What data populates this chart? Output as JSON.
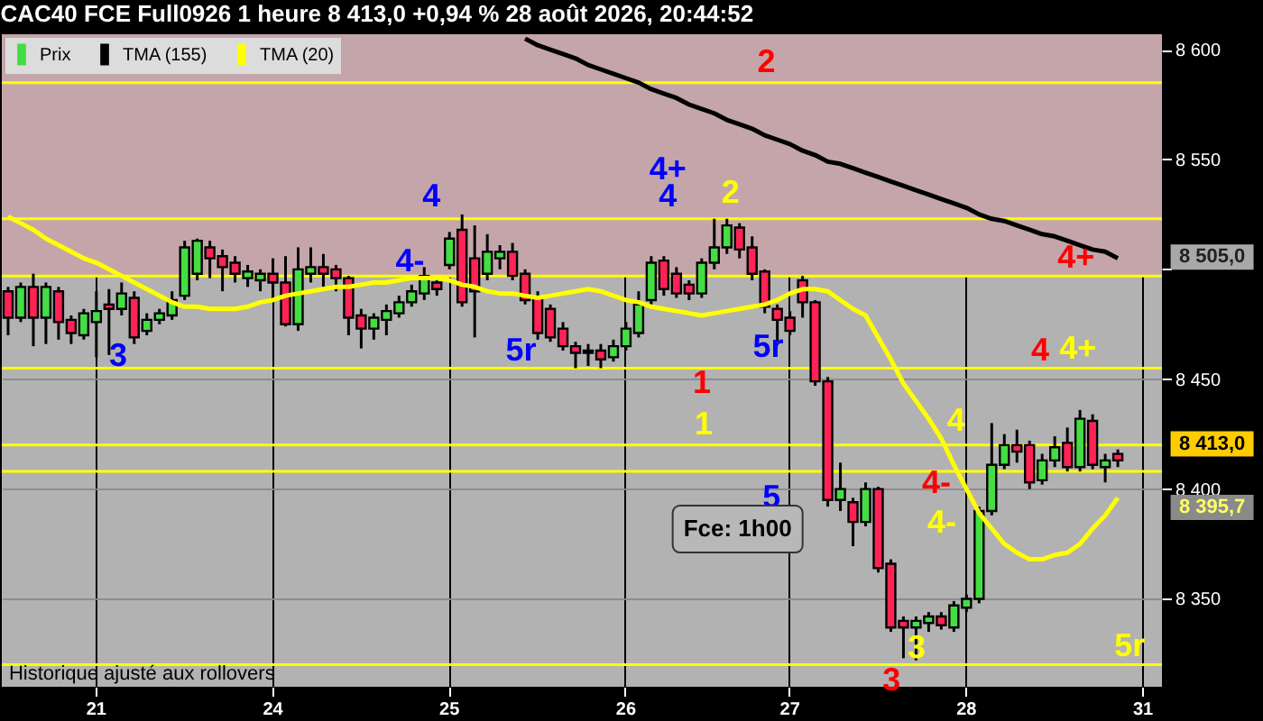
{
  "chart_data": {
    "type": "candlestick",
    "title": "CAC40 FCE Full0926 1 heure 8 413,0 +0,94 % 28 août 2026, 20:44:52",
    "categories": [
      null,
      null,
      null,
      null,
      null,
      null,
      null,
      "21",
      null,
      null,
      null,
      null,
      null,
      null,
      null,
      null,
      null,
      null,
      null,
      null,
      null,
      "24",
      null,
      null,
      null,
      null,
      null,
      null,
      null,
      null,
      null,
      null,
      null,
      null,
      null,
      "25",
      null,
      null,
      null,
      null,
      null,
      null,
      null,
      null,
      null,
      null,
      null,
      null,
      null,
      "26",
      null,
      null,
      null,
      null,
      null,
      null,
      null,
      null,
      null,
      null,
      null,
      null,
      "27",
      null,
      null,
      null,
      null,
      null,
      null,
      null,
      null,
      null,
      null,
      null,
      null,
      null,
      "28",
      null,
      null,
      null,
      null,
      null,
      null,
      null,
      null,
      null,
      null,
      null,
      null,
      null,
      "31",
      null
    ],
    "ylim": [
      8310,
      8607
    ],
    "yticks": [
      {
        "value": 8350,
        "label": "8 350"
      },
      {
        "value": 8400,
        "label": "8 400"
      },
      {
        "value": 8450,
        "label": "8 450"
      },
      {
        "value": 8500,
        "label": null
      },
      {
        "value": 8550,
        "label": "8 550"
      },
      {
        "value": 8600,
        "label": "8 600"
      }
    ],
    "grid": true,
    "legend": "top left",
    "series": [
      {
        "name": "Prix",
        "color": "#44dd44",
        "ohlc": [
          [
            8490,
            8492,
            8470,
            8478
          ],
          [
            8478,
            8494,
            8476,
            8492
          ],
          [
            8492,
            8498,
            8465,
            8478
          ],
          [
            8478,
            8494,
            8466,
            8492
          ],
          [
            8490,
            8492,
            8468,
            8476
          ],
          [
            8477,
            8479,
            8466,
            8471
          ],
          [
            8470,
            8482,
            8468,
            8480
          ],
          [
            8476,
            8490,
            8460,
            8481
          ],
          [
            8484,
            8491,
            8461,
            8482
          ],
          [
            8482,
            8494,
            8479,
            8489
          ],
          [
            8487,
            8490,
            8466,
            8469
          ],
          [
            8472,
            8480,
            8470,
            8477
          ],
          [
            8477,
            8482,
            8475,
            8480
          ],
          [
            8479,
            8490,
            8477,
            8486
          ],
          [
            8488,
            8513,
            8486,
            8510
          ],
          [
            8498,
            8514,
            8495,
            8513
          ],
          [
            8510,
            8513,
            8496,
            8505
          ],
          [
            8506,
            8509,
            8490,
            8501
          ],
          [
            8503,
            8506,
            8494,
            8498
          ],
          [
            8496,
            8502,
            8492,
            8499
          ],
          [
            8495,
            8500,
            8490,
            8498
          ],
          [
            8498,
            8505,
            8485,
            8494
          ],
          [
            8494,
            8506,
            8474,
            8475
          ],
          [
            8475,
            8510,
            8472,
            8500
          ],
          [
            8498,
            8510,
            8494,
            8501
          ],
          [
            8501,
            8507,
            8492,
            8498
          ],
          [
            8500,
            8502,
            8490,
            8496
          ],
          [
            8496,
            8497,
            8470,
            8478
          ],
          [
            8479,
            8482,
            8464,
            8473
          ],
          [
            8473,
            8480,
            8468,
            8478
          ],
          [
            8477,
            8484,
            8470,
            8481
          ],
          [
            8480,
            8488,
            8478,
            8485
          ],
          [
            8485,
            8493,
            8483,
            8490
          ],
          [
            8489,
            8501,
            8486,
            8497
          ],
          [
            8494,
            8496,
            8488,
            8491
          ],
          [
            8502,
            8517,
            8500,
            8514
          ],
          [
            8518,
            8525,
            8483,
            8485
          ],
          [
            8505,
            8520,
            8469,
            8490
          ],
          [
            8498,
            8516,
            8495,
            8508
          ],
          [
            8505,
            8511,
            8500,
            8508
          ],
          [
            8508,
            8512,
            8495,
            8497
          ],
          [
            8498,
            8500,
            8484,
            8486
          ],
          [
            8487,
            8490,
            8468,
            8471
          ],
          [
            8482,
            8484,
            8467,
            8469
          ],
          [
            8473,
            8476,
            8463,
            8465
          ],
          [
            8465,
            8467,
            8455,
            8462
          ],
          [
            8462,
            8466,
            8456,
            8463
          ],
          [
            8463,
            8466,
            8455,
            8459
          ],
          [
            8460,
            8468,
            8458,
            8465
          ],
          [
            8465,
            8476,
            8463,
            8473
          ],
          [
            8471,
            8490,
            8469,
            8484
          ],
          [
            8486,
            8506,
            8484,
            8503
          ],
          [
            8504,
            8506,
            8488,
            8491
          ],
          [
            8498,
            8501,
            8487,
            8489
          ],
          [
            8493,
            8495,
            8486,
            8489
          ],
          [
            8489,
            8505,
            8487,
            8503
          ],
          [
            8503,
            8523,
            8500,
            8510
          ],
          [
            8510,
            8523,
            8507,
            8520
          ],
          [
            8519,
            8521,
            8505,
            8509
          ],
          [
            8510,
            8515,
            8495,
            8498
          ],
          [
            8499,
            8500,
            8480,
            8483
          ],
          [
            8482,
            8484,
            8467,
            8477
          ],
          [
            8478,
            8481,
            8470,
            8472
          ],
          [
            8495,
            8497,
            8478,
            8485
          ],
          [
            8485,
            8486,
            8447,
            8449
          ],
          [
            8449,
            8451,
            8392,
            8395
          ],
          [
            8395,
            8412,
            8390,
            8400
          ],
          [
            8394,
            8396,
            8374,
            8385
          ],
          [
            8385,
            8403,
            8383,
            8400
          ],
          [
            8400,
            8401,
            8362,
            8364
          ],
          [
            8366,
            8368,
            8335,
            8337
          ],
          [
            8340,
            8342,
            8323,
            8337
          ],
          [
            8337,
            8342,
            8322,
            8340
          ],
          [
            8339,
            8344,
            8335,
            8342
          ],
          [
            8342,
            8344,
            8336,
            8338
          ],
          [
            8337,
            8349,
            8335,
            8347
          ],
          [
            8346,
            8352,
            8344,
            8350
          ],
          [
            8350,
            8392,
            8348,
            8390
          ],
          [
            8390,
            8430,
            8388,
            8411
          ],
          [
            8411,
            8425,
            8409,
            8420
          ],
          [
            8420,
            8427,
            8412,
            8417
          ],
          [
            8420,
            8422,
            8400,
            8403
          ],
          [
            8404,
            8416,
            8402,
            8413
          ],
          [
            8413,
            8424,
            8410,
            8419
          ],
          [
            8421,
            8428,
            8408,
            8410
          ],
          [
            8410,
            8436,
            8408,
            8432
          ],
          [
            8431,
            8434,
            8409,
            8411
          ],
          [
            8410,
            8416,
            8403,
            8413
          ],
          [
            8416,
            8418,
            8410,
            8413
          ],
          null,
          null,
          null
        ],
        "colors": [
          "#ff2255",
          "#44dd44",
          "#ff2255",
          "#44dd44",
          "#ff2255",
          "#ff2255",
          "#44dd44",
          "#44dd44",
          "#ff2255",
          "#44dd44",
          "#ff2255",
          "#44dd44",
          "#44dd44",
          "#44dd44",
          "#44dd44",
          "#44dd44",
          "#ff2255",
          "#ff2255",
          "#ff2255",
          "#44dd44",
          "#44dd44",
          "#ff2255",
          "#ff2255",
          "#44dd44",
          "#44dd44",
          "#ff2255",
          "#ff2255",
          "#ff2255",
          "#ff2255",
          "#44dd44",
          "#44dd44",
          "#44dd44",
          "#44dd44",
          "#44dd44",
          "#ff2255",
          "#44dd44",
          "#ff2255",
          "#ff2255",
          "#44dd44",
          "#44dd44",
          "#ff2255",
          "#ff2255",
          "#ff2255",
          "#ff2255",
          "#ff2255",
          "#ff2255",
          "#44dd44",
          "#ff2255",
          "#44dd44",
          "#44dd44",
          "#44dd44",
          "#44dd44",
          "#ff2255",
          "#ff2255",
          "#ff2255",
          "#44dd44",
          "#44dd44",
          "#44dd44",
          "#ff2255",
          "#ff2255",
          "#ff2255",
          "#ff2255",
          "#ff2255",
          "#ff2255",
          "#ff2255",
          "#ff2255",
          "#44dd44",
          "#ff2255",
          "#44dd44",
          "#ff2255",
          "#ff2255",
          "#ff2255",
          "#44dd44",
          "#44dd44",
          "#ff2255",
          "#44dd44",
          "#44dd44",
          "#44dd44",
          "#44dd44",
          "#44dd44",
          "#ff2255",
          "#ff2255",
          "#44dd44",
          "#44dd44",
          "#ff2255",
          "#44dd44",
          "#ff2255",
          "#44dd44",
          "#ff2255",
          null,
          null,
          null
        ]
      },
      {
        "name": "TMA (155)",
        "type": "line",
        "color": "#000000",
        "values": [
          null,
          null,
          null,
          null,
          null,
          null,
          null,
          null,
          null,
          null,
          null,
          null,
          null,
          null,
          null,
          null,
          null,
          null,
          null,
          null,
          null,
          null,
          null,
          null,
          null,
          null,
          null,
          null,
          null,
          null,
          null,
          null,
          null,
          null,
          null,
          null,
          null,
          null,
          null,
          null,
          null,
          8605,
          8602,
          8600,
          8598,
          8596,
          8593,
          8591,
          8589,
          8587,
          8585,
          8582,
          8580,
          8578,
          8575,
          8573,
          8571,
          8568,
          8566,
          8564,
          8561,
          8559,
          8557,
          8554,
          8552,
          8549,
          8548,
          8546,
          8544,
          8542,
          8540,
          8538,
          8536,
          8534,
          8532,
          8530,
          8528,
          8525,
          8523,
          8522,
          8520,
          8518,
          8516,
          8515,
          8513,
          8511,
          8509,
          8508,
          8505,
          null,
          null,
          null
        ]
      },
      {
        "name": "TMA (20)",
        "type": "line",
        "color": "#ffff00",
        "values": [
          8524,
          8521,
          8518,
          8514,
          8511,
          8508,
          8505,
          8503,
          8500,
          8497,
          8494,
          8491,
          8488,
          8485,
          8483,
          8483,
          8482,
          8482,
          8482,
          8483,
          8485,
          8486,
          8488,
          8489,
          8490,
          8491,
          8492,
          8492,
          8493,
          8494,
          8494,
          8495,
          8496,
          8496,
          8496,
          8495,
          8493,
          8492,
          8490,
          8489,
          8489,
          8488,
          8487,
          8488,
          8489,
          8490,
          8491,
          8490,
          8488,
          8486,
          8485,
          8483,
          8482,
          8481,
          8480,
          8479,
          8480,
          8481,
          8482,
          8483,
          8484,
          8486,
          8489,
          8491,
          8491,
          8490,
          8486,
          8482,
          8479,
          8469,
          8459,
          8448,
          8440,
          8432,
          8423,
          8411,
          8400,
          8389,
          8382,
          8375,
          8371,
          8368,
          8368,
          8370,
          8371,
          8375,
          8382,
          8388,
          8396,
          null,
          null,
          null
        ]
      }
    ],
    "ref_lines": [
      {
        "axis": "y",
        "value": 8585,
        "color": "#ffff00"
      },
      {
        "axis": "y",
        "value": 8523,
        "color": "#ffff00"
      },
      {
        "axis": "y",
        "value": 8497,
        "color": "#ffff00"
      },
      {
        "axis": "y",
        "value": 8455,
        "color": "#ffff00"
      },
      {
        "axis": "y",
        "value": 8420,
        "color": "#ffff00"
      },
      {
        "axis": "y",
        "value": 8408,
        "color": "#ffff00"
      },
      {
        "axis": "y",
        "value": 8320,
        "color": "#ffff00"
      }
    ],
    "bands": [
      {
        "axis": "y",
        "from": 8497,
        "to": 8607,
        "color": "#c4a6aa"
      }
    ],
    "annotations": [
      "2",
      "4+",
      "2",
      "4",
      "4",
      "4-",
      "3",
      "5r",
      "1",
      "5r",
      "4+",
      "4",
      "4+",
      "1",
      "4",
      "4-",
      "5",
      "4-",
      "3",
      "3",
      "5r",
      "Fce: 1h00",
      "8 505,0",
      "8 413,0",
      "8 395,7",
      "Historique ajusté aux rollovers"
    ]
  }
}
